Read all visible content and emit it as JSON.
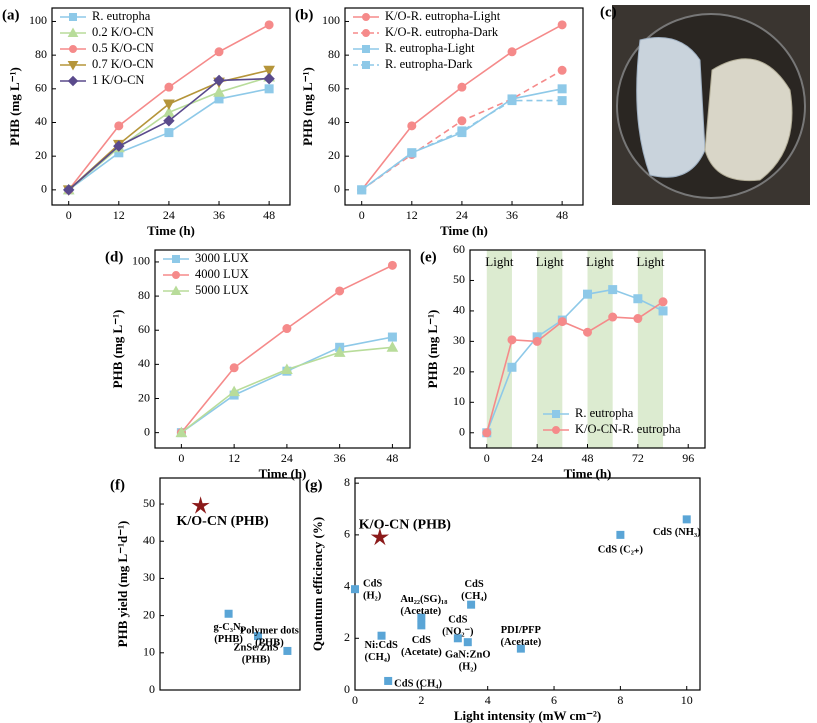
{
  "chart_data": [
    {
      "type": "line",
      "panel": "(a)",
      "x": [
        0,
        12,
        24,
        36,
        48
      ],
      "xlim": [
        -4,
        53
      ],
      "ylim": [
        -9,
        108
      ],
      "xticks": [
        0,
        12,
        24,
        36,
        48
      ],
      "yticks": [
        0,
        20,
        40,
        60,
        80,
        100
      ],
      "xlabel": "Time (h)",
      "ylabel": "PHB (mg L⁻¹)",
      "legend": "upper left",
      "series": [
        {
          "name": "R. eutropha",
          "color": "#8ec9e8",
          "marker": "square",
          "values": [
            0,
            22,
            34,
            54,
            60
          ]
        },
        {
          "name": "0.2 K/O-CN",
          "color": "#b8dc9a",
          "marker": "triangle",
          "values": [
            0,
            25,
            46,
            58,
            67
          ]
        },
        {
          "name": "0.5 K/O-CN",
          "color": "#f58a8a",
          "marker": "circle",
          "values": [
            0,
            38,
            61,
            82,
            98
          ]
        },
        {
          "name": "0.7 K/O-CN",
          "color": "#b5953a",
          "marker": "triangle-down",
          "values": [
            0,
            27,
            51,
            64,
            71
          ]
        },
        {
          "name": "1 K/O-CN",
          "color": "#5a4a8c",
          "marker": "diamond",
          "values": [
            0,
            26,
            41,
            65,
            66
          ]
        }
      ]
    },
    {
      "type": "line",
      "panel": "(b)",
      "x": [
        0,
        12,
        24,
        36,
        48
      ],
      "xlim": [
        -4,
        53
      ],
      "ylim": [
        -9,
        108
      ],
      "xticks": [
        0,
        12,
        24,
        36,
        48
      ],
      "yticks": [
        0,
        20,
        40,
        60,
        80,
        100
      ],
      "xlabel": "Time (h)",
      "ylabel": "PHB (mg L⁻¹)",
      "legend": "upper left",
      "series": [
        {
          "name": "K/O-R. eutropha-Light",
          "color": "#f58a8a",
          "marker": "circle",
          "dashed": false,
          "values": [
            0,
            38,
            61,
            82,
            98
          ]
        },
        {
          "name": "K/O-R. eutropha-Dark",
          "color": "#f58a8a",
          "marker": "circle",
          "dashed": true,
          "values": [
            0,
            21,
            41,
            54,
            71
          ]
        },
        {
          "name": "R. eutropha-Light",
          "color": "#8ec9e8",
          "marker": "square",
          "dashed": false,
          "values": [
            0,
            22,
            34,
            54,
            60
          ]
        },
        {
          "name": "R. eutropha-Dark",
          "color": "#8ec9e8",
          "marker": "square",
          "dashed": true,
          "values": [
            0,
            22,
            35,
            53,
            53
          ]
        }
      ]
    },
    {
      "type": "image",
      "panel": "(c)"
    },
    {
      "type": "line",
      "panel": "(d)",
      "x": [
        0,
        12,
        24,
        36,
        48
      ],
      "xlim": [
        -6,
        52
      ],
      "ylim": [
        -9,
        107
      ],
      "xticks": [
        0,
        12,
        24,
        36,
        48
      ],
      "yticks": [
        0,
        20,
        40,
        60,
        80,
        100
      ],
      "xlabel": "Time (h)",
      "ylabel": "PHB (mg L⁻¹)",
      "legend": "upper left",
      "series": [
        {
          "name": "3000 LUX",
          "color": "#8ec9e8",
          "marker": "square",
          "values": [
            0,
            22,
            36,
            50,
            56
          ]
        },
        {
          "name": "4000 LUX",
          "color": "#f58a8a",
          "marker": "circle",
          "values": [
            0,
            38,
            61,
            83,
            98
          ]
        },
        {
          "name": "5000 LUX",
          "color": "#b8dc9a",
          "marker": "triangle",
          "values": [
            0,
            24,
            37,
            47,
            50
          ]
        }
      ]
    },
    {
      "type": "line",
      "panel": "(e)",
      "x": [
        0,
        12,
        24,
        36,
        48,
        60,
        72,
        84
      ],
      "xlim": [
        -8,
        104
      ],
      "ylim": [
        -5,
        60
      ],
      "xticks": [
        0,
        24,
        48,
        72,
        96
      ],
      "yticks": [
        0,
        10,
        20,
        30,
        40,
        50,
        60
      ],
      "xlabel": "Time (h)",
      "ylabel": "PHB (mg L⁻¹)",
      "legend": "lower right",
      "shaded_regions": [
        [
          0,
          12
        ],
        [
          24,
          36
        ],
        [
          48,
          60
        ],
        [
          72,
          84
        ]
      ],
      "shaded_label": "Light",
      "shaded_color": "#dcebd0",
      "series": [
        {
          "name": "R. eutropha",
          "color": "#8ec9e8",
          "marker": "square",
          "values": [
            0,
            21.5,
            31.5,
            37,
            45.5,
            47,
            44,
            40
          ]
        },
        {
          "name": "K/O-CN-R. eutropha",
          "color": "#f58a8a",
          "marker": "circle",
          "values": [
            0,
            30.5,
            30,
            36.5,
            33,
            38,
            37.5,
            43
          ]
        }
      ]
    },
    {
      "type": "scatter",
      "panel": "(f)",
      "ylim": [
        0,
        57
      ],
      "yticks": [
        0,
        10,
        20,
        30,
        40,
        50
      ],
      "ylabel": "PHB yield (mg L⁻¹d⁻¹)",
      "labels": [
        [
          "K/O-CN (PHB)"
        ],
        [
          "g-C₃N₄",
          "(PHB)"
        ],
        [
          "ZnSe/ZnS",
          "(PHB)"
        ],
        [
          "Polymer dots",
          "(PHB)"
        ]
      ],
      "values": [
        49.5,
        20.5,
        14.5,
        10.5
      ],
      "markers": [
        "star",
        "square",
        "square",
        "square"
      ],
      "colors": [
        "#8b1a1a",
        "#5aa5d6",
        "#5aa5d6",
        "#5aa5d6"
      ]
    },
    {
      "type": "scatter",
      "panel": "(g)",
      "xlim": [
        0,
        10.4
      ],
      "ylim": [
        0,
        8.2
      ],
      "xticks": [
        0,
        2,
        4,
        6,
        8,
        10
      ],
      "yticks": [
        0,
        2,
        4,
        6,
        8
      ],
      "xlabel": "Light intensity (mW cm⁻²)",
      "ylabel": "Quantum efficiency (%)",
      "labels": [
        [
          "K/O-CN (PHB)"
        ],
        [
          "CdS",
          "(H₂)"
        ],
        [
          "Ni:CdS",
          "(CH₄)"
        ],
        [
          "CdS (CH₄)"
        ],
        [
          "Au₂₂(SG)₁₈",
          "(Acetate)"
        ],
        [
          "CdS",
          "(Acetate)"
        ],
        [
          "CdS",
          "(NO₂⁻)"
        ],
        [
          "CdS",
          "(CH₄)"
        ],
        [
          "GaN:ZnO",
          "(H₂)"
        ],
        [
          "PDI/PFP",
          "(Acetate)"
        ],
        [
          "CdS (C₂₊)"
        ],
        [
          "CdS (NH₃)"
        ]
      ],
      "x": [
        0.75,
        0,
        0.8,
        1,
        2,
        2,
        3.1,
        3.5,
        3.4,
        5,
        8,
        10
      ],
      "values": [
        5.9,
        3.9,
        2.1,
        0.35,
        2.8,
        2.5,
        2.0,
        3.3,
        1.85,
        1.6,
        6.0,
        6.6
      ],
      "markers": [
        "star",
        "square",
        "square",
        "square",
        "square",
        "square",
        "square",
        "square",
        "square",
        "square",
        "square",
        "square"
      ],
      "colors": [
        "#8b1a1a",
        "#5aa5d6",
        "#5aa5d6",
        "#5aa5d6",
        "#5aa5d6",
        "#5aa5d6",
        "#5aa5d6",
        "#5aa5d6",
        "#5aa5d6",
        "#5aa5d6",
        "#5aa5d6",
        "#5aa5d6"
      ]
    }
  ]
}
